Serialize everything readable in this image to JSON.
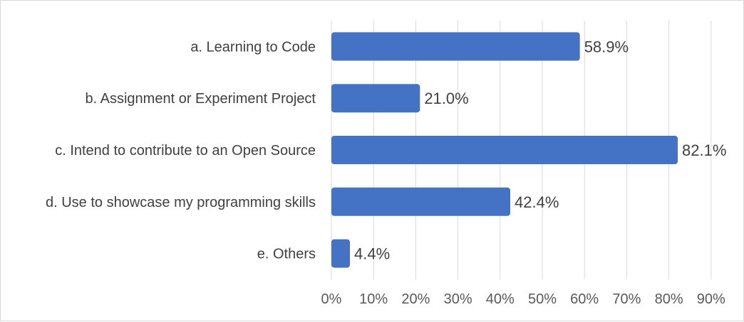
{
  "chart_data": {
    "type": "bar",
    "orientation": "horizontal",
    "categories": [
      "a. Learning to Code",
      "b. Assignment or Experiment Project",
      "c. Intend to contribute to an Open Source",
      "d. Use to showcase my programming skills",
      "e. Others"
    ],
    "values": [
      58.9,
      21.0,
      82.1,
      42.4,
      4.4
    ],
    "data_labels": [
      "58.9%",
      "21.0%",
      "82.1%",
      "42.4%",
      "4.4%"
    ],
    "x_ticks": [
      "0%",
      "10%",
      "20%",
      "30%",
      "40%",
      "50%",
      "60%",
      "70%",
      "80%",
      "90%"
    ],
    "xlim": [
      0,
      90
    ],
    "grid": "vertical",
    "legend": "none",
    "title": "",
    "xlabel": "",
    "ylabel": "",
    "bar_color": "#4472c4",
    "grid_color": "#d9d9d9"
  }
}
